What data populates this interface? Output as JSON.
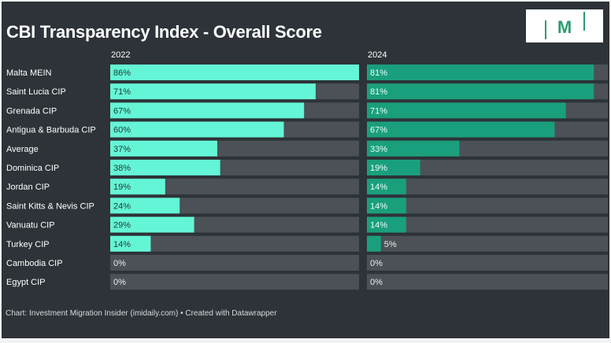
{
  "chart_data": {
    "type": "bar",
    "title": "CBI Transparency Index - Overall Score",
    "categories": [
      "Malta MEIN",
      "Saint Lucia CIP",
      "Grenada CIP",
      "Antigua & Barbuda CIP",
      "Average",
      "Dominica CIP",
      "Jordan CIP",
      "Saint Kitts & Nevis CIP",
      "Vanuatu CIP",
      "Turkey CIP",
      "Cambodia CIP",
      "Egypt CIP"
    ],
    "series": [
      {
        "name": "2022",
        "color": "#64f5d6",
        "values": [
          86,
          71,
          67,
          60,
          37,
          38,
          19,
          24,
          29,
          14,
          0,
          0
        ]
      },
      {
        "name": "2024",
        "color": "#1a9f7d",
        "values": [
          81,
          81,
          71,
          67,
          33,
          19,
          14,
          14,
          14,
          5,
          0,
          0
        ]
      }
    ],
    "ylim": [
      0,
      86
    ],
    "unit": "%",
    "xlabel": "",
    "ylabel": ""
  },
  "logo": {
    "text": "M"
  },
  "footer": "Chart: Investment Migration Insider (imidaily.com) • Created with Datawrapper",
  "colors": {
    "background": "#2d3338",
    "track": "#4b5156",
    "label_text": "#ffffff"
  }
}
